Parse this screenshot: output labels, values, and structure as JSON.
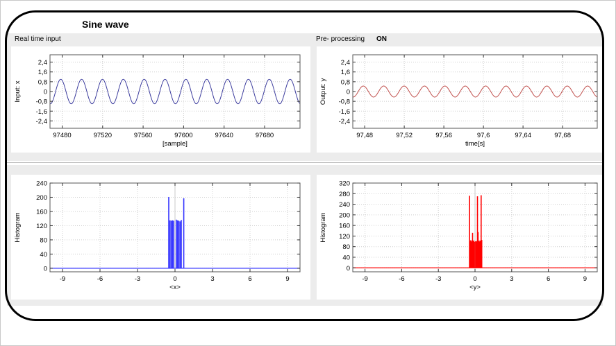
{
  "title": "Sine wave",
  "sections": {
    "input_label": "Real time input",
    "preprocessing_label": "Pre- processing",
    "preprocessing_state": "ON"
  },
  "chart_data": [
    {
      "id": "input",
      "type": "line",
      "ylabel": "Input: x",
      "xlabel": "[sample]",
      "xlim": [
        97468,
        97715
      ],
      "ylim": [
        -3.0,
        3.0
      ],
      "xticks": [
        97480,
        97520,
        97560,
        97600,
        97640,
        97680
      ],
      "xtick_labels": [
        "97480",
        "97520",
        "97560",
        "97600",
        "97640",
        "97680"
      ],
      "yticks": [
        2.4,
        1.6,
        0.8,
        0,
        -0.8,
        -1.6,
        -2.4
      ],
      "ytick_labels": [
        "2,4",
        "1,6",
        "0,8",
        "0",
        "-0,8",
        "-1,6",
        "-2,4"
      ],
      "series": [
        {
          "amplitude": 1.0,
          "period": 20.6,
          "phase_x": 97473.5,
          "color": "#3d3d9e"
        }
      ],
      "grid": true
    },
    {
      "id": "output",
      "type": "line",
      "ylabel": "Output: y",
      "xlabel": "time[s]",
      "xlim": [
        97.468,
        97.715
      ],
      "ylim": [
        -3.0,
        3.0
      ],
      "xticks": [
        97.48,
        97.52,
        97.56,
        97.6,
        97.64,
        97.68
      ],
      "xtick_labels": [
        "97,48",
        "97,52",
        "97,56",
        "97,6",
        "97,64",
        "97,68"
      ],
      "yticks": [
        2.4,
        1.6,
        0.8,
        0,
        -0.8,
        -1.6,
        -2.4
      ],
      "ytick_labels": [
        "2,4",
        "1,6",
        "0,8",
        "0",
        "-0,8",
        "-1,6",
        "-2,4"
      ],
      "series": [
        {
          "amplitude": 0.45,
          "period": 0.0206,
          "phase_x": 97.4735,
          "color": "#c0504d"
        }
      ],
      "grid": true
    },
    {
      "id": "hist_x",
      "type": "bar",
      "ylabel": "Histogram",
      "xlabel": "<x>",
      "xlim": [
        -10,
        10
      ],
      "ylim": [
        -10,
        240
      ],
      "xticks": [
        -9,
        -6,
        -3,
        0,
        3,
        6,
        9
      ],
      "xtick_labels": [
        "-9",
        "-6",
        "-3",
        "0",
        "3",
        "6",
        "9"
      ],
      "yticks": [
        240,
        200,
        160,
        120,
        80,
        40,
        0
      ],
      "ytick_labels": [
        "240",
        "200",
        "160",
        "120",
        "80",
        "40",
        "0"
      ],
      "color": "#3333ff",
      "x": [
        -0.5,
        -0.4,
        -0.3,
        -0.2,
        -0.1,
        0.1,
        0.2,
        0.3,
        0.4,
        0.5,
        0.7
      ],
      "values": [
        201,
        135,
        134,
        135,
        134,
        137,
        135,
        134,
        132,
        136,
        197
      ],
      "grid": true
    },
    {
      "id": "hist_y",
      "type": "bar",
      "ylabel": "Histogram",
      "xlabel": "<y>",
      "xlim": [
        -10,
        10
      ],
      "ylim": [
        -15,
        320
      ],
      "xticks": [
        -9,
        -6,
        -3,
        0,
        3,
        6,
        9
      ],
      "xtick_labels": [
        "-9",
        "-6",
        "-3",
        "0",
        "3",
        "6",
        "9"
      ],
      "yticks": [
        320,
        280,
        240,
        200,
        160,
        120,
        80,
        40,
        0
      ],
      "ytick_labels": [
        "320",
        "280",
        "240",
        "200",
        "160",
        "120",
        "80",
        "40",
        "0"
      ],
      "color": "#ff0000",
      "x": [
        -0.45,
        -0.4,
        -0.35,
        -0.3,
        -0.25,
        -0.2,
        -0.15,
        -0.1,
        -0.05,
        0.05,
        0.1,
        0.15,
        0.2,
        0.25,
        0.3,
        0.35,
        0.4,
        0.45,
        0.5,
        0.55
      ],
      "values": [
        272,
        100,
        104,
        98,
        102,
        132,
        100,
        103,
        98,
        100,
        101,
        99,
        270,
        135,
        102,
        98,
        103,
        100,
        274,
        105
      ],
      "grid": true
    }
  ]
}
